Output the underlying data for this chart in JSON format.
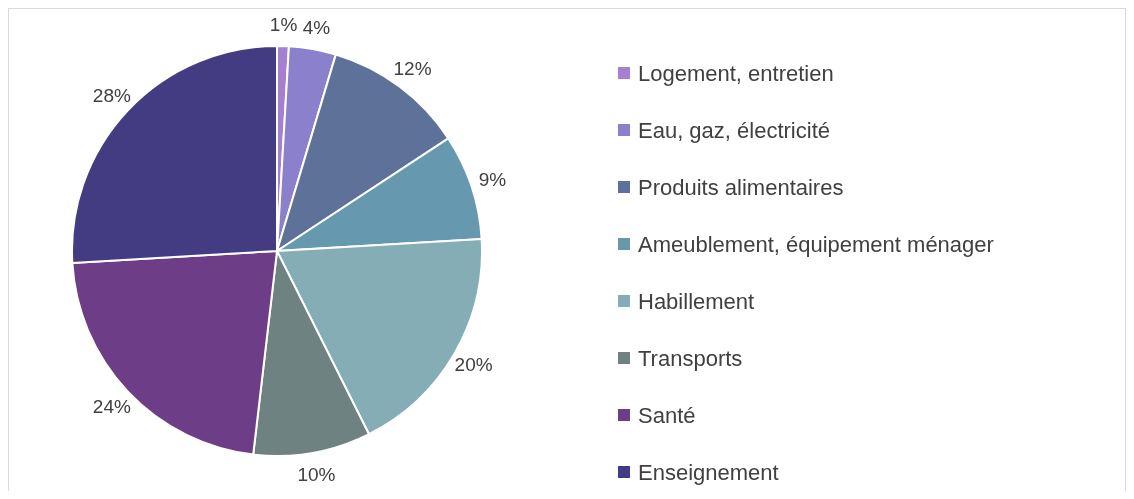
{
  "chart_data": {
    "type": "pie",
    "categories": [
      "Logement, entretien",
      "Eau, gaz, électricité",
      "Produits alimentaires",
      "Ameublement, équipement ménager",
      "Habillement",
      "Transports",
      "Santé",
      "Enseignement"
    ],
    "values": [
      1,
      4,
      12,
      9,
      20,
      10,
      24,
      28
    ],
    "colors": [
      "#a57fd0",
      "#8b80cc",
      "#5e7299",
      "#6699b0",
      "#84adb5",
      "#6e8282",
      "#6e3d88",
      "#433c82"
    ],
    "value_labels": [
      "1%",
      "4%",
      "12%",
      "9%",
      "20%",
      "10%",
      "24%",
      "28%"
    ],
    "legend": "right"
  }
}
